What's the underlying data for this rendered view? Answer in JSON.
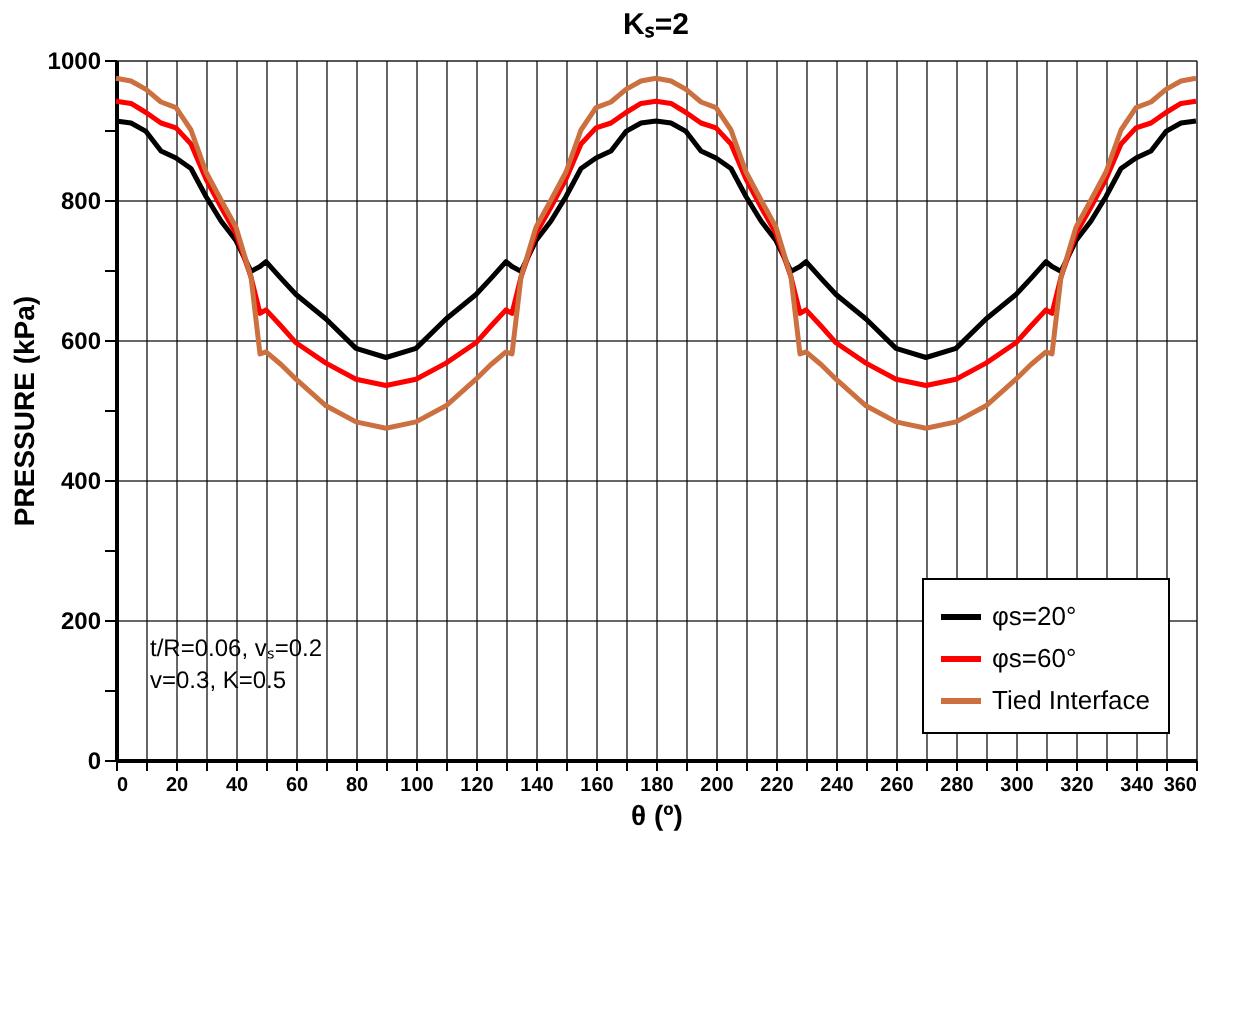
{
  "chart_data": {
    "type": "line",
    "title": "Kₛ=2",
    "xlabel": "θ (º)",
    "ylabel": "PRESSURE (kPa)",
    "x": [
      0,
      5,
      10,
      15,
      20,
      25,
      30,
      35,
      40,
      45,
      48,
      50,
      55,
      60,
      70,
      80,
      90,
      100,
      110,
      120,
      125,
      130,
      132,
      135,
      140,
      145,
      150,
      155,
      160,
      165,
      170,
      175,
      180,
      185,
      190,
      195,
      200,
      205,
      210,
      215,
      220,
      225,
      228,
      230,
      235,
      240,
      250,
      260,
      270,
      280,
      290,
      300,
      305,
      310,
      312,
      315,
      320,
      325,
      330,
      335,
      340,
      345,
      350,
      355,
      360
    ],
    "series": [
      {
        "name": "φs=20°",
        "color": "#000000",
        "values": [
          913,
          910,
          898,
          870,
          860,
          845,
          805,
          770,
          742,
          698,
          705,
          712,
          688,
          665,
          630,
          588,
          575,
          588,
          630,
          665,
          688,
          712,
          705,
          698,
          742,
          770,
          805,
          845,
          860,
          870,
          898,
          910,
          913,
          910,
          898,
          870,
          860,
          845,
          805,
          770,
          742,
          698,
          705,
          712,
          688,
          665,
          630,
          588,
          575,
          588,
          630,
          665,
          688,
          712,
          705,
          698,
          742,
          770,
          805,
          845,
          860,
          870,
          898,
          910,
          913
        ]
      },
      {
        "name": "φs=60°",
        "color": "#ff0000",
        "values": [
          941,
          938,
          925,
          910,
          903,
          880,
          830,
          790,
          752,
          690,
          638,
          643,
          620,
          596,
          567,
          544,
          535,
          544,
          567,
          596,
          620,
          643,
          638,
          690,
          752,
          790,
          830,
          880,
          903,
          910,
          925,
          938,
          941,
          938,
          925,
          910,
          903,
          880,
          830,
          790,
          752,
          690,
          638,
          643,
          620,
          596,
          567,
          544,
          535,
          544,
          567,
          596,
          620,
          643,
          638,
          690,
          752,
          790,
          830,
          880,
          903,
          910,
          925,
          938,
          941
        ]
      },
      {
        "name": "Tied Interface",
        "color": "#cc7040",
        "values": [
          974,
          970,
          958,
          940,
          932,
          900,
          840,
          800,
          761,
          690,
          580,
          583,
          565,
          544,
          506,
          483,
          474,
          483,
          506,
          544,
          565,
          583,
          580,
          690,
          761,
          800,
          840,
          900,
          932,
          940,
          958,
          970,
          974,
          970,
          958,
          940,
          932,
          900,
          840,
          800,
          761,
          690,
          580,
          583,
          565,
          544,
          506,
          483,
          474,
          483,
          506,
          544,
          565,
          583,
          580,
          690,
          761,
          800,
          840,
          900,
          932,
          940,
          958,
          970,
          974
        ]
      }
    ],
    "xlim": [
      0,
      360
    ],
    "xticks": [
      0,
      {
        "value": 10,
        "label": null
      },
      20,
      {
        "value": 30,
        "label": null
      },
      40,
      {
        "value": 50,
        "label": null
      },
      60,
      {
        "value": 70,
        "label": null
      },
      80,
      {
        "value": 90,
        "label": null
      },
      100,
      {
        "value": 110,
        "label": null
      },
      120,
      {
        "value": 130,
        "label": null
      },
      140,
      {
        "value": 150,
        "label": null
      },
      160,
      {
        "value": 170,
        "label": null
      },
      180,
      {
        "value": 190,
        "label": null
      },
      200,
      {
        "value": 210,
        "label": null
      },
      220,
      {
        "value": 230,
        "label": null
      },
      240,
      {
        "value": 250,
        "label": null
      },
      260,
      {
        "value": 270,
        "label": null
      },
      280,
      {
        "value": 290,
        "label": null
      },
      300,
      {
        "value": 310,
        "label": null
      },
      320,
      {
        "value": 330,
        "label": null
      },
      340,
      {
        "value": 350,
        "label": null
      },
      360
    ],
    "ylim": [
      0,
      1000
    ],
    "yticks": [
      0,
      {
        "value": 100,
        "label": null
      },
      200,
      {
        "value": 300,
        "label": null
      },
      400,
      {
        "value": 500,
        "label": null
      },
      600,
      {
        "value": 700,
        "label": null
      },
      800,
      {
        "value": 900,
        "label": null
      },
      1000
    ],
    "grid": true,
    "legend": "bottom right",
    "line_style": "solid",
    "marker": "none",
    "annotations": [
      "t/R=0.06, vₛ=0.2\nv=0.3,  K=0.5"
    ]
  }
}
